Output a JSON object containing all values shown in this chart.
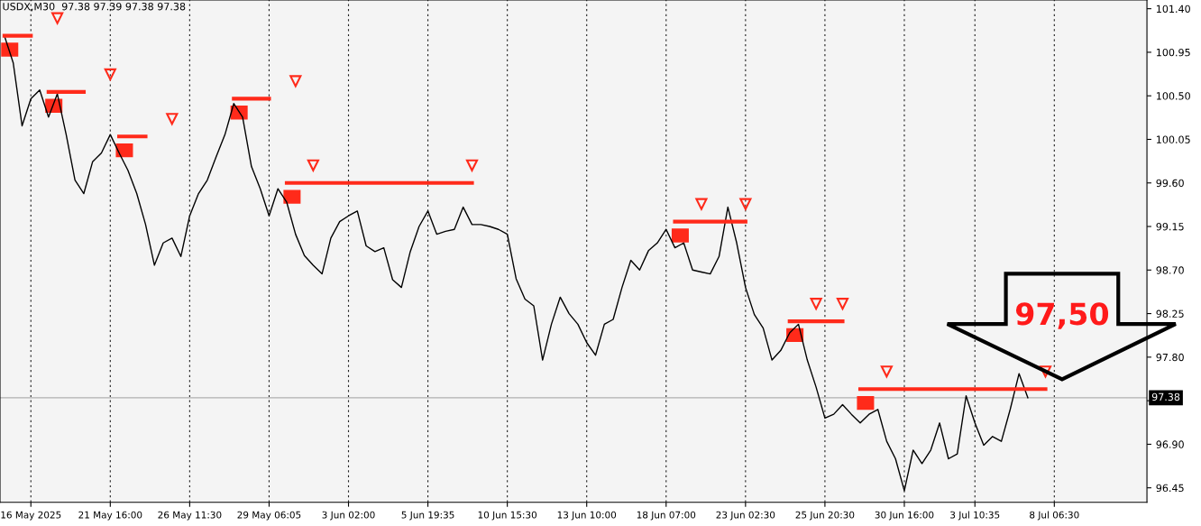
{
  "chart_data": {
    "type": "line",
    "title": "USDX,M30  97.38 97.39 97.38 97.38",
    "annotations": [
      "97,50"
    ],
    "categories": [
      null,
      null,
      null,
      "16 May 2025",
      null,
      null,
      null,
      null,
      null,
      null,
      null,
      null,
      "21 May 16:00",
      null,
      null,
      null,
      null,
      null,
      null,
      null,
      null,
      "26 May 11:30",
      null,
      null,
      null,
      null,
      null,
      null,
      null,
      null,
      "29 May 06:05",
      null,
      null,
      null,
      null,
      null,
      null,
      null,
      null,
      "3 Jun 02:00",
      null,
      null,
      null,
      null,
      null,
      null,
      null,
      null,
      "5 Jun 19:35",
      null,
      null,
      null,
      null,
      null,
      null,
      null,
      null,
      "10 Jun 15:30",
      null,
      null,
      null,
      null,
      null,
      null,
      null,
      null,
      "13 Jun 10:00",
      null,
      null,
      null,
      null,
      null,
      null,
      null,
      null,
      "18 Jun 07:00",
      null,
      null,
      null,
      null,
      null,
      null,
      null,
      null,
      "23 Jun 02:30",
      null,
      null,
      null,
      null,
      null,
      null,
      null,
      null,
      "25 Jun 20:30",
      null,
      null,
      null,
      null,
      null,
      null,
      null,
      null,
      "30 Jun 16:00",
      null,
      null,
      null,
      null,
      null,
      null,
      null,
      "3 Jul 10:35",
      null,
      null,
      null,
      null,
      null,
      null,
      null,
      null,
      "8 Jul 06:30",
      null,
      null,
      null,
      null,
      null,
      null,
      null,
      null,
      null,
      null
    ],
    "series": [
      {
        "color": "#000000",
        "values": [
          101.12,
          100.84,
          100.19,
          100.47,
          100.56,
          100.28,
          100.52,
          100.1,
          99.63,
          99.49,
          99.82,
          99.91,
          100.1,
          99.91,
          99.73,
          99.49,
          99.17,
          98.75,
          98.98,
          99.03,
          98.84,
          99.26,
          99.49,
          99.63,
          99.87,
          100.1,
          100.42,
          100.28,
          99.77,
          99.54,
          99.26,
          99.54,
          99.4,
          99.07,
          98.85,
          98.75,
          98.66,
          99.03,
          99.2,
          99.26,
          99.31,
          98.95,
          98.89,
          98.93,
          98.6,
          98.52,
          98.89,
          99.15,
          99.31,
          99.07,
          99.1,
          99.12,
          99.35,
          99.17,
          99.17,
          99.15,
          99.12,
          99.07,
          98.61,
          98.4,
          98.33,
          97.77,
          98.14,
          98.42,
          98.25,
          98.14,
          97.95,
          97.82,
          98.14,
          98.19,
          98.52,
          98.8,
          98.7,
          98.9,
          98.98,
          99.12,
          98.93,
          98.98,
          98.7,
          98.68,
          98.66,
          98.84,
          99.35,
          98.98,
          98.52,
          98.24,
          98.1,
          97.77,
          97.87,
          98.05,
          98.14,
          97.77,
          97.49,
          97.17,
          97.21,
          97.31,
          97.21,
          97.12,
          97.21,
          97.26,
          96.93,
          96.75,
          96.42,
          96.84,
          96.7,
          96.84,
          97.12,
          96.75,
          96.8,
          97.4,
          97.12,
          96.89,
          96.98,
          96.93,
          97.26,
          97.63,
          97.38,
          null,
          null,
          null,
          null,
          null,
          null,
          null,
          null,
          null,
          null,
          null,
          null,
          null
        ]
      },
      {
        "color": "#ff2a1a",
        "values": [
          101.12,
          101.12,
          101.12,
          101.12,
          null,
          100.54,
          100.54,
          100.54,
          100.54,
          100.54,
          null,
          null,
          null,
          100.08,
          100.08,
          100.08,
          100.08,
          null,
          null,
          null,
          null,
          null,
          null,
          null,
          null,
          null,
          100.47,
          100.47,
          100.47,
          100.47,
          100.47,
          null,
          99.6,
          99.6,
          99.6,
          99.6,
          99.6,
          99.6,
          99.6,
          99.6,
          99.6,
          99.6,
          99.6,
          99.6,
          99.6,
          99.6,
          99.6,
          99.6,
          99.6,
          99.6,
          99.6,
          99.6,
          99.6,
          99.6,
          null,
          null,
          null,
          null,
          null,
          null,
          null,
          null,
          null,
          null,
          null,
          null,
          null,
          null,
          null,
          null,
          null,
          null,
          null,
          null,
          null,
          null,
          99.2,
          99.2,
          99.2,
          99.2,
          99.2,
          99.2,
          99.2,
          99.2,
          99.2,
          null,
          null,
          null,
          null,
          98.17,
          98.17,
          98.17,
          98.17,
          98.17,
          98.17,
          98.17,
          null,
          97.47,
          97.47,
          97.47,
          97.47,
          97.47,
          97.47,
          97.47,
          97.47,
          97.47,
          97.47,
          97.47,
          97.47,
          97.47,
          97.47,
          97.47,
          97.47,
          97.47,
          97.47,
          97.47,
          97.47,
          97.47,
          97.47,
          null,
          null,
          null,
          null,
          null,
          null,
          null,
          null,
          null,
          null,
          null
        ]
      }
    ],
    "ref_lines": [
      {
        "axis": "y",
        "value": 97.38,
        "label": "97.38",
        "color": "#b0b0b0"
      }
    ],
    "ylim": [
      96.3,
      101.49
    ],
    "yticks": [
      {
        "value": 96.45,
        "label": "96.45"
      },
      {
        "value": 96.9,
        "label": "96.90"
      },
      {
        "value": 97.35,
        "label": null
      },
      {
        "value": 97.8,
        "label": "97.80"
      },
      {
        "value": 98.25,
        "label": "98.25"
      },
      {
        "value": 98.7,
        "label": "98.70"
      },
      {
        "value": 99.15,
        "label": "99.15"
      },
      {
        "value": 99.6,
        "label": "99.60"
      },
      {
        "value": 100.05,
        "label": "100.05"
      },
      {
        "value": 100.5,
        "label": "100.50"
      },
      {
        "value": 100.95,
        "label": "100.95"
      },
      {
        "value": 101.4,
        "label": "101.40"
      }
    ],
    "grid": "x",
    "line_style": "solid",
    "marker": "none",
    "legend": false
  }
}
